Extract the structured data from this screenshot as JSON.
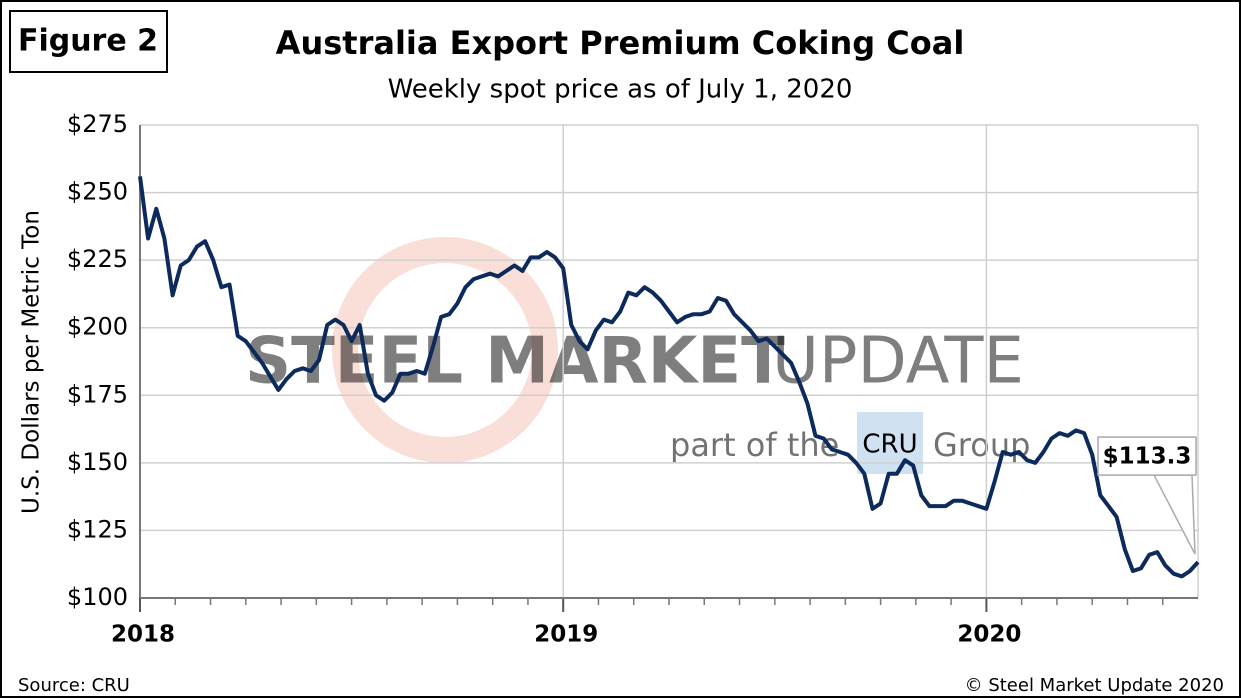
{
  "chart_data": {
    "type": "line",
    "figure_label": "Figure 2",
    "title": "Australia Export Premium Coking Coal",
    "subtitle": "Weekly spot price as of July 1, 2020",
    "y_label": "U.S. Dollars per Metric Ton",
    "source": "Source: CRU",
    "copyright": "© Steel Market Update 2020",
    "watermark": [
      "STEEL MARKET",
      "UPDATE",
      "part of the",
      "CRU",
      "Group"
    ],
    "grid": true,
    "color": "#0d2a5c",
    "ylim": [
      100,
      275
    ],
    "yticks": [
      {
        "value": 100,
        "label": "$100"
      },
      {
        "value": 125,
        "label": "$125"
      },
      {
        "value": 150,
        "label": "$150"
      },
      {
        "value": 175,
        "label": "$175"
      },
      {
        "value": 200,
        "label": "$200"
      },
      {
        "value": 225,
        "label": "$225"
      },
      {
        "value": 250,
        "label": "$250"
      },
      {
        "value": 275,
        "label": "$275"
      }
    ],
    "categories": [
      "2018",
      null,
      null,
      null,
      null,
      null,
      null,
      null,
      null,
      null,
      null,
      null,
      null,
      null,
      null,
      null,
      null,
      null,
      null,
      null,
      null,
      null,
      null,
      null,
      null,
      null,
      null,
      null,
      null,
      null,
      null,
      null,
      null,
      null,
      null,
      null,
      null,
      null,
      null,
      null,
      null,
      null,
      null,
      null,
      null,
      null,
      null,
      null,
      null,
      null,
      null,
      null,
      "2019",
      null,
      null,
      null,
      null,
      null,
      null,
      null,
      null,
      null,
      null,
      null,
      null,
      null,
      null,
      null,
      null,
      null,
      null,
      null,
      null,
      null,
      null,
      null,
      null,
      null,
      null,
      null,
      null,
      null,
      null,
      null,
      null,
      null,
      null,
      null,
      null,
      null,
      null,
      null,
      null,
      null,
      null,
      null,
      null,
      null,
      null,
      null,
      null,
      null,
      null,
      null,
      "2020",
      null,
      null,
      null,
      null,
      null,
      null,
      null,
      null,
      null,
      null,
      null,
      null,
      null,
      null,
      null,
      null,
      null,
      null,
      null,
      null,
      null,
      null,
      null,
      null,
      null,
      null
    ],
    "values": [
      256,
      233,
      244,
      233,
      212,
      223,
      225,
      230,
      232,
      225,
      215,
      216,
      197,
      195,
      191,
      187,
      182,
      177,
      181,
      184,
      185,
      184,
      188,
      201,
      203,
      201,
      195,
      201,
      183,
      175,
      173,
      176,
      183,
      183,
      184,
      183,
      193,
      204,
      205,
      209,
      215,
      218,
      219,
      220,
      219,
      221,
      223,
      221,
      226,
      226,
      228,
      226,
      222,
      201,
      195,
      192,
      199,
      203,
      202,
      206,
      213,
      212,
      215,
      213,
      210,
      206,
      202,
      204,
      205,
      205,
      206,
      211,
      210,
      205,
      202,
      199,
      195,
      196,
      193,
      190,
      187,
      180,
      172,
      160,
      159,
      155,
      154,
      153,
      150,
      146,
      133,
      135,
      146,
      146,
      151,
      149,
      138,
      134,
      134,
      134,
      136,
      136,
      135,
      134,
      133,
      143,
      154,
      153,
      154,
      151,
      150,
      154,
      159,
      161,
      160,
      162,
      161,
      153,
      138,
      134,
      130,
      118,
      110,
      111,
      116,
      117,
      112,
      109,
      108,
      110,
      113.3
    ],
    "value_labels": [
      null,
      null,
      null,
      null,
      null,
      null,
      null,
      null,
      null,
      null,
      null,
      null,
      null,
      null,
      null,
      null,
      null,
      null,
      null,
      null,
      null,
      null,
      null,
      null,
      null,
      null,
      null,
      null,
      null,
      null,
      null,
      null,
      null,
      null,
      null,
      null,
      null,
      null,
      null,
      null,
      null,
      null,
      null,
      null,
      null,
      null,
      null,
      null,
      null,
      null,
      null,
      null,
      null,
      null,
      null,
      null,
      null,
      null,
      null,
      null,
      null,
      null,
      null,
      null,
      null,
      null,
      null,
      null,
      null,
      null,
      null,
      null,
      null,
      null,
      null,
      null,
      null,
      null,
      null,
      null,
      null,
      null,
      null,
      null,
      null,
      null,
      null,
      null,
      null,
      null,
      null,
      null,
      null,
      null,
      null,
      null,
      null,
      null,
      null,
      null,
      null,
      null,
      null,
      null,
      null,
      null,
      null,
      null,
      null,
      null,
      null,
      null,
      null,
      null,
      null,
      null,
      null,
      null,
      null,
      null,
      null,
      null,
      null,
      null,
      null,
      null,
      null,
      null,
      null,
      null,
      "$113.3"
    ]
  }
}
